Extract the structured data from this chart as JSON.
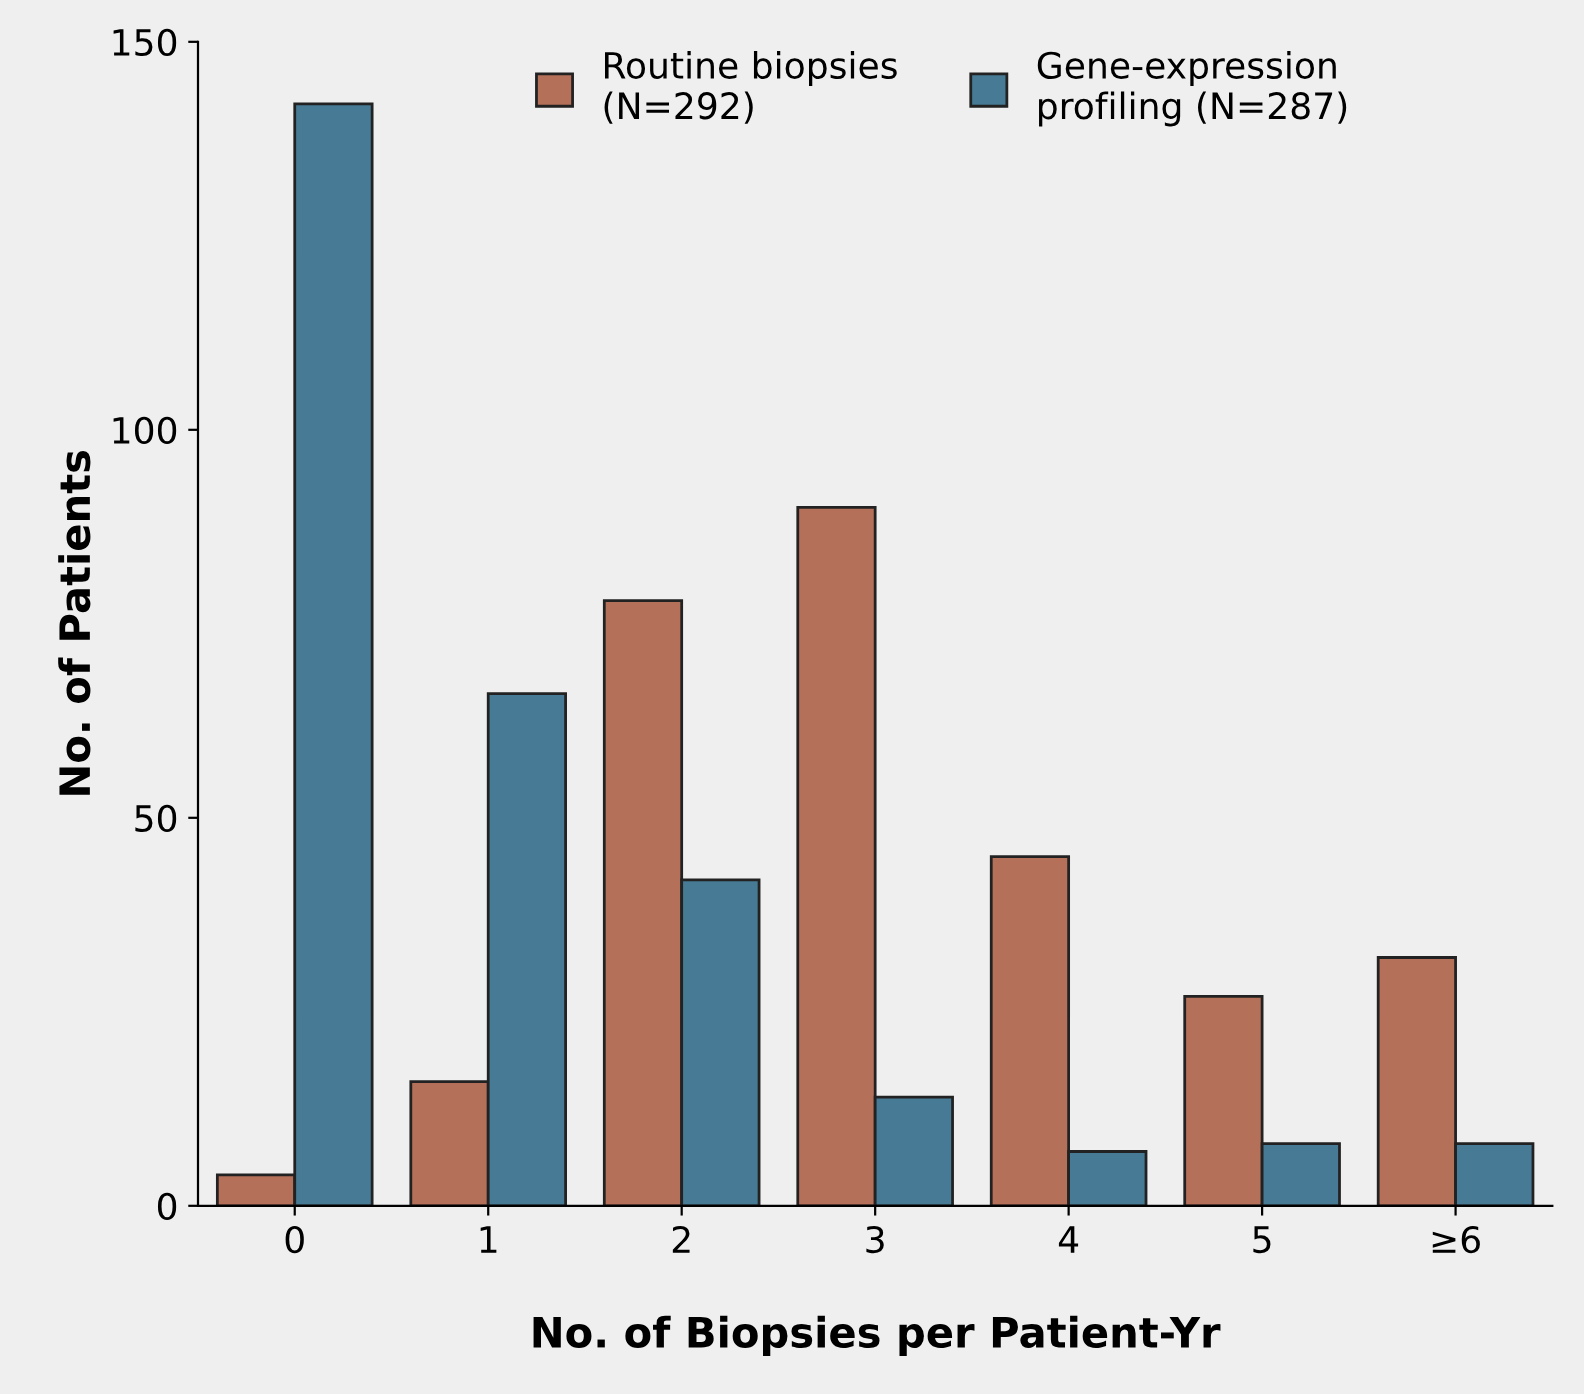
{
  "chart_data": {
    "type": "bar",
    "xlabel": "No. of Biopsies per Patient-Yr",
    "ylabel": "No. of Patients",
    "categories": [
      "0",
      "1",
      "2",
      "3",
      "4",
      "5",
      "≥6"
    ],
    "series": [
      {
        "name": "Routine biopsies\n(N=292)",
        "color": "#b5705a",
        "values": [
          4,
          16,
          78,
          90,
          45,
          27,
          32
        ]
      },
      {
        "name": "Gene-expression\nprofiling (N=287)",
        "color": "#477a94",
        "values": [
          142,
          66,
          42,
          14,
          7,
          8,
          8
        ]
      }
    ],
    "ylim": [
      0,
      150
    ],
    "yticks": [
      0,
      50,
      100,
      150
    ],
    "grid": false,
    "legend": "top"
  }
}
